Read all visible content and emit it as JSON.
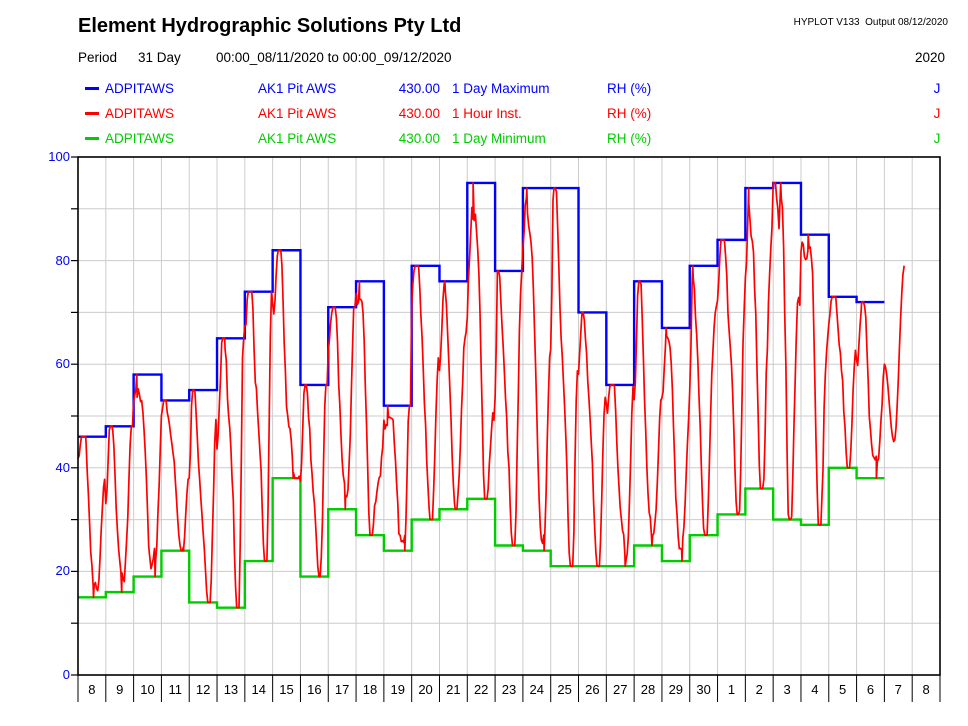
{
  "header": {
    "title": "Element Hydrographic Solutions Pty Ltd",
    "stamp": "HYPLOT V133  Output 08/12/2020",
    "period_label": "Period",
    "period_length": "31 Day",
    "period_range": "00:00_08/11/2020 to 00:00_09/12/2020",
    "year": "2020"
  },
  "legend": {
    "rows": [
      {
        "code": "ADPITAWS",
        "station": "AK1 Pit AWS",
        "number": "430.00",
        "stat": "1 Day Maximum",
        "unit": "RH (%)",
        "flag": "J",
        "color": "#0000FF"
      },
      {
        "code": "ADPITAWS",
        "station": "AK1 Pit AWS",
        "number": "430.00",
        "stat": "1 Hour Inst.",
        "unit": "RH (%)",
        "flag": "J",
        "color": "#FF0000"
      },
      {
        "code": "ADPITAWS",
        "station": "AK1 Pit AWS",
        "number": "430.00",
        "stat": "1 Day Minimum",
        "unit": "RH (%)",
        "flag": "J",
        "color": "#00CC00"
      }
    ]
  },
  "chart_data": {
    "type": "line",
    "title": "",
    "ylabel": "RH (%)",
    "ylim": [
      0,
      100
    ],
    "y_tick_labels": [
      "0",
      "20",
      "40",
      "60",
      "80",
      "100"
    ],
    "y_minor_step": 10,
    "x_categories": [
      "8",
      "9",
      "10",
      "11",
      "12",
      "13",
      "14",
      "15",
      "16",
      "17",
      "18",
      "19",
      "20",
      "21",
      "22",
      "23",
      "24",
      "25",
      "26",
      "27",
      "28",
      "29",
      "30",
      "1",
      "2",
      "3",
      "4",
      "5",
      "6",
      "7",
      "8"
    ],
    "grid": true,
    "colors": {
      "grid": "#CCCCCC",
      "axis": "#000000",
      "y_tick_text": "#0000FF",
      "x_tick_text": "#000000"
    },
    "series": [
      {
        "name": "1 Day Maximum",
        "type": "step",
        "color": "#0000FF",
        "values": [
          46,
          48,
          58,
          53,
          55,
          65,
          74,
          82,
          56,
          71,
          76,
          52,
          79,
          76,
          95,
          78,
          94,
          94,
          70,
          56,
          76,
          67,
          79,
          84,
          94,
          95,
          85,
          73,
          72
        ]
      },
      {
        "name": "1 Hour Inst.",
        "type": "hourly",
        "color": "#FF0000",
        "start_value": 43,
        "peak_base": 0.1,
        "trough_base": 0.55,
        "tail": [
          [
            0,
            60
          ],
          [
            0.35,
            45
          ],
          [
            0.72,
            79
          ]
        ]
      },
      {
        "name": "1 Day Minimum",
        "type": "step",
        "color": "#00CC00",
        "values": [
          15,
          16,
          19,
          24,
          14,
          13,
          22,
          38,
          19,
          32,
          27,
          24,
          30,
          32,
          34,
          25,
          24,
          21,
          21,
          21,
          25,
          22,
          27,
          31,
          36,
          30,
          29,
          40,
          38
        ]
      }
    ]
  }
}
